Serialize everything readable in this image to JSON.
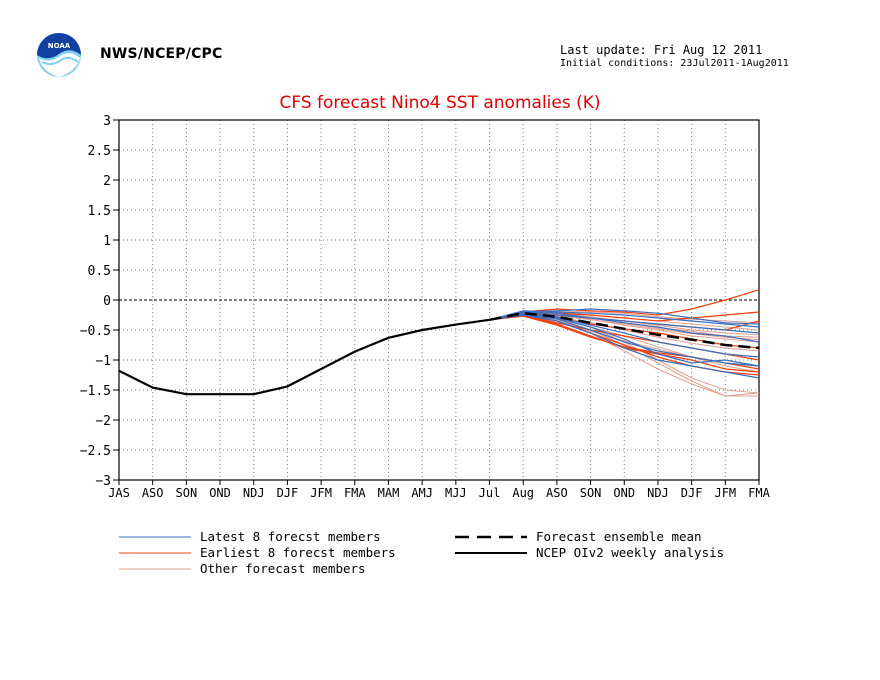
{
  "header": {
    "agency": "NWS/NCEP/CPC",
    "last_update": "Last update: Fri Aug 12 2011",
    "initial_conditions": "Initial conditions: 23Jul2011-1Aug2011",
    "logo_text": "NOAA"
  },
  "colors": {
    "title": "#e00000",
    "latest": "#3a6fc0",
    "earliest": "#f04010",
    "other": "#e0a090",
    "mean": "#000000",
    "analysis": "#000000"
  },
  "chart_data": {
    "type": "line",
    "title": "CFS forecast Nino4 SST anomalies (K)",
    "xlabel": "",
    "ylabel": "",
    "categories": [
      "JAS",
      "ASO",
      "SON",
      "OND",
      "NDJ",
      "DJF",
      "JFM",
      "FMA",
      "MAM",
      "AMJ",
      "MJJ",
      "Jul",
      "Aug",
      "ASO",
      "SON",
      "OND",
      "NDJ",
      "DJF",
      "JFM",
      "FMA"
    ],
    "ylim": [
      -3,
      3
    ],
    "yticks": [
      "3",
      "2.5",
      "2",
      "1.5",
      "1",
      "0.5",
      "0",
      "−0.5",
      "−1",
      "−1.5",
      "−2",
      "−2.5",
      "−3"
    ],
    "ytick_values": [
      3,
      2.5,
      2,
      1.5,
      1,
      0.5,
      0,
      -0.5,
      -1,
      -1.5,
      -2,
      -2.5,
      -3
    ],
    "grid": true,
    "legend": [
      {
        "label": "Latest 8 forecst members",
        "style": "latest"
      },
      {
        "label": "Forecast ensemble mean",
        "style": "mean"
      },
      {
        "label": "Earliest 8 forecst members",
        "style": "earliest"
      },
      {
        "label": "NCEP OIv2 weekly analysis",
        "style": "analysis"
      },
      {
        "label": "Other forecast members",
        "style": "other"
      }
    ],
    "series": [
      {
        "name": "NCEP OIv2 weekly analysis",
        "style": "analysis",
        "x": [
          0,
          1,
          2,
          3,
          4,
          5,
          6,
          7,
          8,
          9,
          10,
          11
        ],
        "values": [
          -1.18,
          -1.46,
          -1.57,
          -1.57,
          -1.57,
          -1.44,
          -1.15,
          -0.86,
          -0.63,
          -0.5,
          -0.41,
          -0.33
        ]
      },
      {
        "name": "Forecast ensemble mean",
        "style": "mean",
        "x": [
          11,
          12,
          13,
          14,
          15,
          16,
          17,
          18,
          19
        ],
        "values": [
          -0.33,
          -0.22,
          -0.28,
          -0.38,
          -0.48,
          -0.58,
          -0.66,
          -0.75,
          -0.8
        ]
      }
    ],
    "members": {
      "latest": [
        [
          -0.33,
          -0.2,
          -0.22,
          -0.3,
          -0.35,
          -0.4,
          -0.45,
          -0.5,
          -0.55
        ],
        [
          -0.33,
          -0.22,
          -0.28,
          -0.42,
          -0.55,
          -0.7,
          -0.8,
          -0.9,
          -0.95
        ],
        [
          -0.33,
          -0.25,
          -0.35,
          -0.55,
          -0.8,
          -1.0,
          -1.1,
          -1.2,
          -1.3
        ],
        [
          -0.33,
          -0.18,
          -0.2,
          -0.22,
          -0.25,
          -0.3,
          -0.35,
          -0.4,
          -0.45
        ],
        [
          -0.33,
          -0.23,
          -0.3,
          -0.45,
          -0.65,
          -0.9,
          -1.05,
          -1.0,
          -1.1
        ],
        [
          -0.33,
          -0.21,
          -0.25,
          -0.3,
          -0.38,
          -0.45,
          -0.55,
          -0.6,
          -0.7
        ],
        [
          -0.33,
          -0.24,
          -0.32,
          -0.5,
          -0.7,
          -0.85,
          -0.95,
          -1.05,
          -1.1
        ],
        [
          -0.33,
          -0.2,
          -0.18,
          -0.15,
          -0.18,
          -0.22,
          -0.3,
          -0.38,
          -0.4
        ]
      ],
      "earliest": [
        [
          -0.33,
          -0.24,
          -0.35,
          -0.55,
          -0.75,
          -0.95,
          -1.1,
          -1.2,
          -1.25
        ],
        [
          -0.33,
          -0.2,
          -0.15,
          -0.18,
          -0.2,
          -0.25,
          -0.15,
          0.0,
          0.17
        ],
        [
          -0.33,
          -0.26,
          -0.4,
          -0.6,
          -0.8,
          -0.9,
          -1.0,
          -1.15,
          -1.2
        ],
        [
          -0.33,
          -0.22,
          -0.25,
          -0.3,
          -0.35,
          -0.4,
          -0.45,
          -0.5,
          -0.35
        ],
        [
          -0.33,
          -0.25,
          -0.38,
          -0.5,
          -0.6,
          -0.7,
          -0.8,
          -0.9,
          -1.0
        ],
        [
          -0.33,
          -0.21,
          -0.22,
          -0.25,
          -0.3,
          -0.35,
          -0.3,
          -0.25,
          -0.2
        ],
        [
          -0.33,
          -0.27,
          -0.42,
          -0.62,
          -0.78,
          -0.88,
          -0.95,
          -1.05,
          -1.15
        ],
        [
          -0.33,
          -0.23,
          -0.3,
          -0.4,
          -0.48,
          -0.55,
          -0.65,
          -0.75,
          -0.8
        ]
      ],
      "other": [
        [
          -0.33,
          -0.2,
          -0.2,
          -0.25,
          -0.3,
          -0.35,
          -0.4,
          -0.45,
          -0.5
        ],
        [
          -0.33,
          -0.22,
          -0.3,
          -0.45,
          -0.7,
          -1.0,
          -1.3,
          -1.5,
          -1.55
        ],
        [
          -0.33,
          -0.24,
          -0.35,
          -0.5,
          -0.75,
          -1.05,
          -1.35,
          -1.6,
          -1.55
        ],
        [
          -0.33,
          -0.19,
          -0.18,
          -0.2,
          -0.22,
          -0.28,
          -0.32,
          -0.35,
          -0.38
        ],
        [
          -0.33,
          -0.21,
          -0.25,
          -0.32,
          -0.42,
          -0.5,
          -0.6,
          -0.65,
          -0.7
        ],
        [
          -0.33,
          -0.25,
          -0.35,
          -0.55,
          -0.85,
          -1.15,
          -1.4,
          -1.6,
          -1.6
        ],
        [
          -0.33,
          -0.23,
          -0.28,
          -0.38,
          -0.5,
          -0.62,
          -0.72,
          -0.8,
          -0.85
        ],
        [
          -0.33,
          -0.2,
          -0.22,
          -0.28,
          -0.35,
          -0.42,
          -0.5,
          -0.55,
          -0.58
        ],
        [
          -0.33,
          -0.26,
          -0.38,
          -0.52,
          -0.68,
          -0.82,
          -0.95,
          -1.05,
          -1.1
        ],
        [
          -0.33,
          -0.22,
          -0.26,
          -0.33,
          -0.4,
          -0.48,
          -0.56,
          -0.62,
          -0.66
        ],
        [
          -0.33,
          -0.24,
          -0.32,
          -0.45,
          -0.6,
          -0.78,
          -0.95,
          -1.1,
          -1.2
        ],
        [
          -0.33,
          -0.21,
          -0.24,
          -0.3,
          -0.38,
          -0.46,
          -0.52,
          -0.6,
          -0.62
        ]
      ]
    }
  }
}
